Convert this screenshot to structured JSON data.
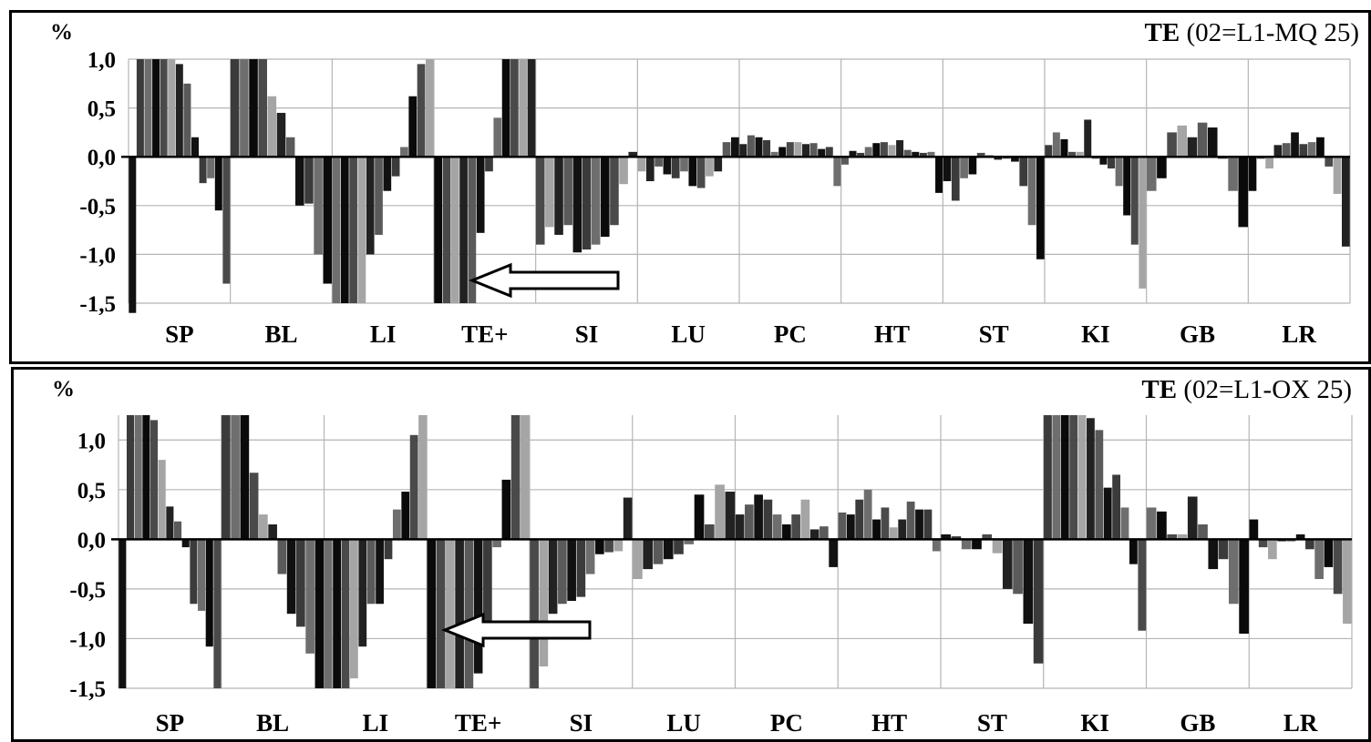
{
  "chart_data": [
    {
      "type": "bar",
      "title_bold": "TE",
      "title_rest": "(02=L1-MQ 25)",
      "unit_label": "%",
      "ylim": [
        -1.5,
        1.0
      ],
      "yticks": [
        "1,0",
        "0,5",
        "0,0",
        "-0,5",
        "-1,0",
        "-1,5"
      ],
      "ytick_values": [
        1.0,
        0.5,
        0.0,
        -0.5,
        -1.0,
        -1.5
      ],
      "categories": [
        "SP",
        "BL",
        "LI",
        "TE+",
        "SI",
        "LU",
        "PC",
        "HT",
        "ST",
        "KI",
        "GB",
        "LR"
      ],
      "grid": "vertical-and-horizontal",
      "annotation": "arrow pointing left to TE+ group",
      "values": [
        [
          -1.6,
          1.2,
          1.2,
          1.2,
          1.2,
          1.2,
          0.95,
          0.75,
          0.2,
          -0.27,
          -0.22,
          -0.55,
          -1.3
        ],
        [
          1.2,
          1.2,
          1.2,
          1.2,
          0.62,
          0.45,
          0.2,
          -0.5,
          -0.48,
          -1.0,
          -1.3
        ],
        [
          -1.5,
          -1.5,
          -1.5,
          -1.5,
          -1.0,
          -0.8,
          -0.35,
          -0.2,
          0.1,
          0.62,
          0.95,
          1.2
        ],
        [
          -1.5,
          -1.5,
          -1.5,
          -1.5,
          -1.5,
          -0.78,
          -0.15,
          0.4,
          1.1,
          1.2,
          1.2,
          1.2
        ],
        [
          -0.9,
          -0.72,
          -0.8,
          -0.7,
          -0.98,
          -0.95,
          -0.9,
          -0.82,
          -0.7,
          -0.28,
          0.05
        ],
        [
          -0.15,
          -0.25,
          -0.1,
          -0.18,
          -0.22,
          -0.15,
          -0.3,
          -0.32,
          -0.2,
          -0.15,
          0.15,
          0.2
        ],
        [
          0.13,
          0.22,
          0.2,
          0.17,
          0.05,
          0.1,
          0.15,
          0.15,
          0.13,
          0.14,
          0.08,
          0.1,
          -0.3
        ],
        [
          -0.08,
          0.06,
          0.04,
          0.1,
          0.14,
          0.15,
          0.12,
          0.17,
          0.07,
          0.05,
          0.04,
          0.05,
          -0.37
        ],
        [
          -0.25,
          -0.45,
          -0.22,
          -0.18,
          0.04,
          0.02,
          -0.03,
          -0.02,
          -0.05,
          -0.3,
          -0.7,
          -1.05
        ],
        [
          0.12,
          0.25,
          0.18,
          0.05,
          0.05,
          0.38,
          -0.02,
          -0.08,
          -0.12,
          -0.3,
          -0.6,
          -0.9,
          -1.35
        ],
        [
          -0.35,
          -0.22,
          0.25,
          0.32,
          0.2,
          0.35,
          0.3,
          -0.02,
          -0.35,
          -0.72
        ],
        [
          -0.35,
          -0.02,
          -0.12,
          0.12,
          0.14,
          0.25,
          0.13,
          0.15,
          0.2,
          -0.1,
          -0.38,
          -0.92
        ]
      ]
    },
    {
      "type": "bar",
      "title_bold": "TE",
      "title_rest": "(02=L1-OX 25)",
      "unit_label": "%",
      "ylim": [
        -1.5,
        1.25
      ],
      "yticks": [
        "1,0",
        "0,5",
        "0,0",
        "-0,5",
        "-1,0",
        "-1,5"
      ],
      "ytick_values": [
        1.0,
        0.5,
        0.0,
        -0.5,
        -1.0,
        -1.5
      ],
      "categories": [
        "SP",
        "BL",
        "LI",
        "TE+",
        "SI",
        "LU",
        "PC",
        "HT",
        "ST",
        "KI",
        "GB",
        "LR"
      ],
      "grid": "vertical-and-horizontal",
      "annotation": "arrow pointing left to TE+ group",
      "values": [
        [
          -1.5,
          1.25,
          1.25,
          1.25,
          1.2,
          0.8,
          0.33,
          0.18,
          -0.08,
          -0.65,
          -0.72,
          -1.08,
          -1.5
        ],
        [
          1.25,
          1.25,
          1.25,
          0.67,
          0.25,
          0.15,
          -0.35,
          -0.75,
          -0.88,
          -1.15,
          -1.5
        ],
        [
          -1.5,
          -1.5,
          -1.5,
          -1.4,
          -1.08,
          -0.65,
          -0.65,
          -0.2,
          0.3,
          0.48,
          1.05,
          1.25
        ],
        [
          -1.5,
          -1.5,
          -1.5,
          -1.5,
          -1.5,
          -1.35,
          -1.0,
          -0.08,
          0.6,
          1.25,
          1.25
        ],
        [
          -1.5,
          -1.28,
          -0.75,
          -0.65,
          -0.62,
          -0.58,
          -0.35,
          -0.15,
          -0.13,
          -0.12,
          0.42
        ],
        [
          -0.4,
          -0.3,
          -0.25,
          -0.2,
          -0.15,
          -0.05,
          0.45,
          0.15,
          0.55,
          0.48
        ],
        [
          0.25,
          0.35,
          0.45,
          0.4,
          0.25,
          0.15,
          0.25,
          0.4,
          0.1,
          0.13,
          -0.28
        ],
        [
          0.27,
          0.25,
          0.4,
          0.5,
          0.2,
          0.32,
          0.12,
          0.2,
          0.38,
          0.3,
          0.3,
          -0.12
        ],
        [
          0.05,
          0.03,
          -0.1,
          -0.1,
          0.05,
          -0.14,
          -0.5,
          -0.55,
          -0.85,
          -1.25
        ],
        [
          1.25,
          1.25,
          1.25,
          1.25,
          1.25,
          1.22,
          1.1,
          0.52,
          0.65,
          0.32,
          -0.25,
          -0.92
        ],
        [
          0.32,
          0.28,
          0.05,
          0.05,
          0.43,
          0.15,
          -0.3,
          -0.2,
          -0.65,
          -0.95
        ],
        [
          0.2,
          -0.08,
          -0.2,
          -0.02,
          -0.02,
          0.05,
          -0.1,
          -0.4,
          -0.28,
          -0.55,
          -0.85
        ]
      ]
    }
  ]
}
